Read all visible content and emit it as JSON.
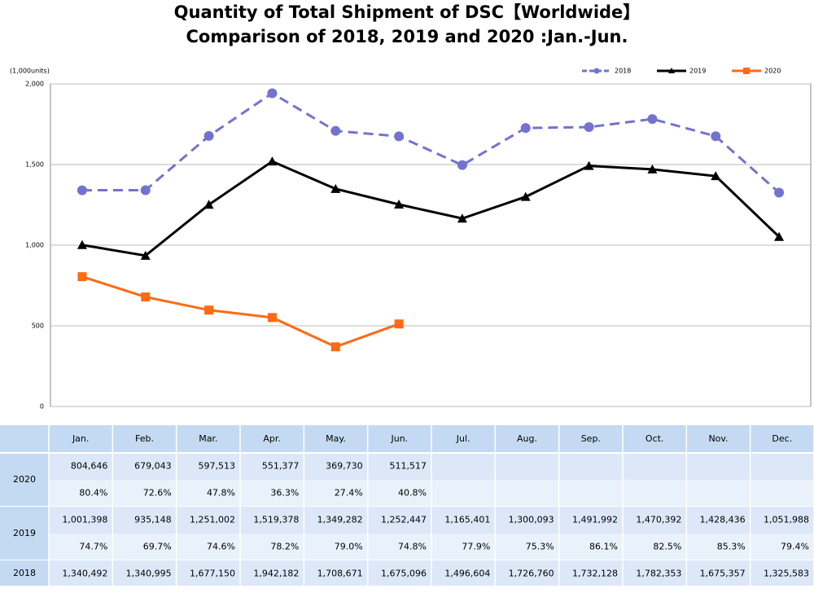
{
  "chart_data": {
    "type": "line",
    "title": "Quantity of Total Shipment of DSC【Worldwide】",
    "subtitle": "Comparison of 2018, 2019 and 2020 :Jan.-Jun.",
    "y_label": "(1,000units)",
    "categories": [
      "Jan.",
      "Feb.",
      "Mar.",
      "Apr.",
      "May.",
      "Jun.",
      "Jul.",
      "Aug.",
      "Sep.",
      "Oct.",
      "Nov.",
      "Dec."
    ],
    "ylim": [
      0,
      2000
    ],
    "yticks": [
      {
        "value": 0,
        "label": "0"
      },
      {
        "value": 500,
        "label": "500"
      },
      {
        "value": 1000,
        "label": "1,000"
      },
      {
        "value": 1500,
        "label": "1,500"
      },
      {
        "value": 2000,
        "label": "2,000"
      }
    ],
    "grid": true,
    "legend": "top-right",
    "series": [
      {
        "name": "2018",
        "color": "#7373cf",
        "dash": true,
        "marker": "circle",
        "values": [
          1340.492,
          1340.995,
          1677.15,
          1942.182,
          1708.671,
          1675.096,
          1496.604,
          1726.76,
          1732.128,
          1782.353,
          1675.357,
          1325.583
        ],
        "value_labels": [
          "1,340,492",
          "1,340,995",
          "1,677,150",
          "1,942,182",
          "1,708,671",
          "1,675,096",
          "1,496,604",
          "1,726,760",
          "1,732,128",
          "1,782,353",
          "1,675,357",
          "1,325,583"
        ]
      },
      {
        "name": "2019",
        "color": "#000000",
        "dash": false,
        "marker": "triangle",
        "values": [
          1001.398,
          935.148,
          1251.002,
          1519.378,
          1349.282,
          1252.447,
          1165.401,
          1300.093,
          1491.992,
          1470.392,
          1428.436,
          1051.988
        ],
        "value_labels": [
          "1,001,398",
          "935,148",
          "1,251,002",
          "1,519,378",
          "1,349,282",
          "1,252,447",
          "1,165,401",
          "1,300,093",
          "1,491,992",
          "1,470,392",
          "1,428,436",
          "1,051,988"
        ],
        "ratio_labels": [
          "74.7%",
          "69.7%",
          "74.6%",
          "78.2%",
          "79.0%",
          "74.8%",
          "77.9%",
          "75.3%",
          "86.1%",
          "82.5%",
          "85.3%",
          "79.4%"
        ]
      },
      {
        "name": "2020",
        "color": "#ff6a12",
        "dash": false,
        "marker": "square",
        "values": [
          804.646,
          679.043,
          597.513,
          551.377,
          369.73,
          511.517,
          null,
          null,
          null,
          null,
          null,
          null
        ],
        "value_labels": [
          "804,646",
          "679,043",
          "597,513",
          "551,377",
          "369,730",
          "511,517",
          null,
          null,
          null,
          null,
          null,
          null
        ],
        "ratio_labels": [
          "80.4%",
          "72.6%",
          "47.8%",
          "36.3%",
          "27.4%",
          "40.8%",
          null,
          null,
          null,
          null,
          null,
          null
        ]
      }
    ]
  }
}
